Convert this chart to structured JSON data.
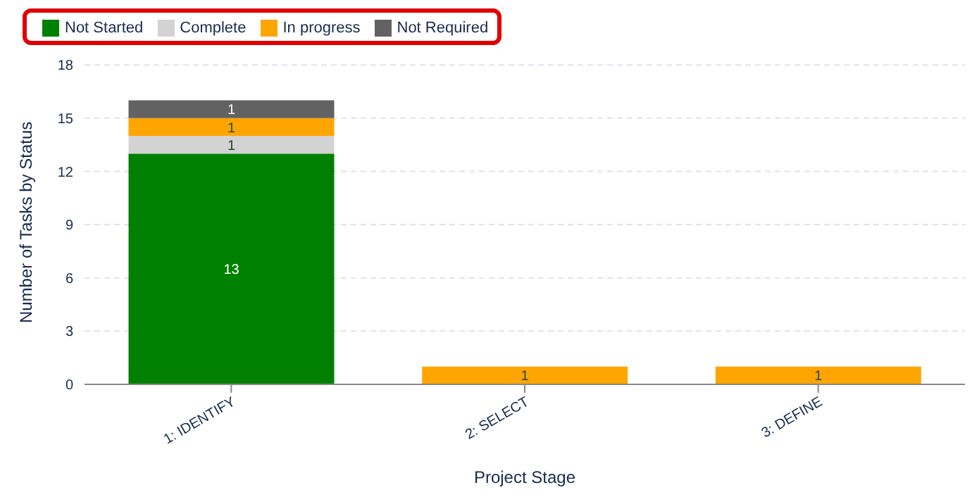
{
  "chart_data": {
    "type": "bar",
    "stacked": true,
    "xlabel": "Project Stage",
    "ylabel": "Number of Tasks by Status",
    "categories": [
      "1: IDENTIFY",
      "2: SELECT",
      "3: DEFINE"
    ],
    "series": [
      {
        "name": "Not Started",
        "color": "#008000",
        "values": [
          13,
          null,
          null
        ]
      },
      {
        "name": "Complete",
        "color": "#d3d3d3",
        "values": [
          1,
          null,
          null
        ]
      },
      {
        "name": "In progress",
        "color": "#ffa500",
        "values": [
          1,
          1,
          1
        ]
      },
      {
        "name": "Not Required",
        "color": "#626262",
        "values": [
          1,
          null,
          null
        ]
      }
    ],
    "ylim": [
      0,
      18
    ],
    "yticks": [
      0,
      3,
      6,
      9,
      12,
      15,
      18
    ],
    "grid": "y",
    "legend": "top left",
    "data_labels": true
  }
}
